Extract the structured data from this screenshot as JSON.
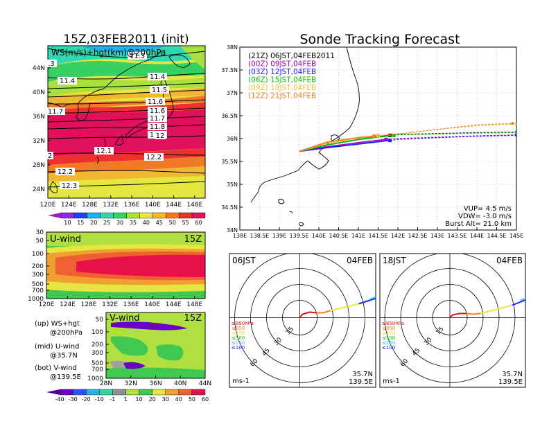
{
  "panels": {
    "main_title": "15Z,03FEB2011 (init)",
    "tracking_title": "Sonde Tracking Forecast",
    "map_label": "WS(m/s)+hgt(km)@200hPa",
    "u_wind_label": "U-wind",
    "u_wind_time": "15Z",
    "v_wind_label": "V-wind",
    "v_wind_time": "15Z",
    "legend_notes": [
      {
        "title": "(up) WS+hgt",
        "sub": "@200hPa"
      },
      {
        "title": "(mid) U-wind",
        "sub": "@35.7N"
      },
      {
        "title": "(bot) V-wind",
        "sub": "@139.5E"
      }
    ]
  },
  "map": {
    "lon_labels": [
      "120E",
      "124E",
      "128E",
      "132E",
      "136E",
      "140E",
      "144E",
      "148E"
    ],
    "lat_labels": [
      "24N",
      "28N",
      "32N",
      "36N",
      "40N",
      "44N"
    ],
    "contour_labels": [
      "11.3",
      "11.4",
      "11.4",
      "11.5",
      "11.6",
      "11.6",
      "11.7",
      "11.7",
      "11.8",
      "11.9",
      "12",
      "12.1",
      "12.2",
      "12.2",
      "12.3",
      ".3",
      "2"
    ],
    "ws_colorbar": [
      {
        "value": "10",
        "color": "#8a2be2"
      },
      {
        "value": "15",
        "color": "#2040ff"
      },
      {
        "value": "20",
        "color": "#22b0e8"
      },
      {
        "value": "25",
        "color": "#2fd8b0"
      },
      {
        "value": "30",
        "color": "#38d060"
      },
      {
        "value": "35",
        "color": "#a8e040"
      },
      {
        "value": "40",
        "color": "#e6e640"
      },
      {
        "value": "45",
        "color": "#f0b830"
      },
      {
        "value": "50",
        "color": "#f07a28"
      },
      {
        "value": "55",
        "color": "#ee3030"
      },
      {
        "value": "60",
        "color": "#e0105a"
      }
    ]
  },
  "cross_sections": {
    "pressure_labels": [
      "30",
      "50",
      "100",
      "200",
      "300",
      "500",
      "700",
      "1000"
    ],
    "u_lon_labels": [
      "120E",
      "124E",
      "128E",
      "132E",
      "136E",
      "140E",
      "144E",
      "148E"
    ],
    "v_lat_labels": [
      "28N",
      "32N",
      "36N",
      "40N",
      "44N"
    ],
    "v_pressure_labels": [
      "50",
      "100",
      "200",
      "300",
      "500",
      "700",
      "1000"
    ],
    "uv_colorbar": [
      "-40",
      "-30",
      "-20",
      "-10",
      "-1",
      "1",
      "10",
      "20",
      "30",
      "40",
      "50",
      "60"
    ],
    "uv_colors": [
      "#6a00c8",
      "#3050ff",
      "#28b0f0",
      "#30d8a8",
      "#909090",
      "#b0e040",
      "#40c850",
      "#e6e640",
      "#f0a030",
      "#f06030",
      "#e8104a"
    ]
  },
  "chart_data": {
    "type": "line",
    "title": "Sonde Tracking Forecast",
    "xlim": [
      138.0,
      145.0
    ],
    "ylim": [
      34.0,
      38.0
    ],
    "x_ticks": [
      "138E",
      "138.5E",
      "139E",
      "139.5E",
      "140E",
      "140.5E",
      "141E",
      "141.5E",
      "142E",
      "142.5E",
      "143E",
      "143.5E",
      "144E",
      "144.5E",
      "145E"
    ],
    "y_ticks": [
      "34N",
      "34.5N",
      "35N",
      "35.5N",
      "36N",
      "36.5N",
      "37N",
      "37.5N",
      "38N"
    ],
    "grid": true,
    "legend_placement": "top-left",
    "series": [
      {
        "name": "(21Z) 06JST,04FEB2011",
        "color": "#000000",
        "x": [
          139.5,
          140.2,
          141.0,
          141.8,
          142.0,
          143.0,
          144.0,
          145.0
        ],
        "y": [
          35.72,
          35.86,
          35.98,
          36.07,
          36.09,
          36.11,
          36.13,
          36.14
        ]
      },
      {
        "name": "(00Z) 09JST,04FEB",
        "color": "#b000c0",
        "x": [
          139.5,
          140.2,
          141.0,
          141.7,
          142.0,
          143.0,
          144.0,
          145.0
        ],
        "y": [
          35.72,
          35.82,
          35.91,
          35.98,
          36.0,
          36.03,
          36.06,
          36.08
        ]
      },
      {
        "name": "(03Z) 12JST,04FEB",
        "color": "#2020ff",
        "x": [
          139.5,
          140.2,
          141.0,
          141.8,
          142.0,
          143.0,
          144.0,
          145.0
        ],
        "y": [
          35.72,
          35.8,
          35.88,
          35.96,
          35.98,
          36.02,
          36.05,
          36.07
        ]
      },
      {
        "name": "(06Z) 15JST,04FEB",
        "color": "#10c010",
        "x": [
          139.5,
          140.2,
          141.0,
          141.9,
          142.0,
          143.0,
          144.0,
          145.0
        ],
        "y": [
          35.72,
          35.86,
          35.98,
          36.07,
          36.08,
          36.1,
          36.12,
          36.13
        ]
      },
      {
        "name": "(09Z) 18JST,04FEB",
        "color": "#f0c040",
        "x": [
          139.5,
          140.2,
          141.0,
          141.5,
          142.0,
          143.0,
          144.0,
          145.0
        ],
        "y": [
          35.72,
          35.9,
          36.02,
          36.06,
          36.1,
          36.2,
          36.28,
          36.32
        ]
      },
      {
        "name": "(12Z) 21JST,04FEB",
        "color": "#f08020",
        "x": [
          139.5,
          140.2,
          141.0,
          141.4,
          142.0,
          143.0,
          144.0,
          144.9
        ],
        "y": [
          35.72,
          35.92,
          36.02,
          36.05,
          36.1,
          36.2,
          36.3,
          36.33
        ]
      }
    ],
    "annotations": [
      "VUP= 4.5 m/s",
      "VDW= -3.0 m/s",
      "Burst Alt= 21.0 km"
    ]
  },
  "hodographs": [
    {
      "left_label": "06JST",
      "right_label": "04FEB",
      "bottom_right": [
        "35.7N",
        "139.5E"
      ],
      "bottom_left": "ms-1",
      "ring_labels": [
        "15",
        "30",
        "45",
        "60"
      ],
      "levels": [
        {
          "label": "≥850hPa",
          "color": "#e01010"
        },
        {
          "label": "≤850",
          "color": "#f08020"
        },
        {
          "label": "≤700",
          "color": "#e6e640"
        },
        {
          "label": "≤500",
          "color": "#10c010"
        },
        {
          "label": "≤250",
          "color": "#20d0e0"
        },
        {
          "label": "≤100",
          "color": "#2020ff"
        }
      ]
    },
    {
      "left_label": "18JST",
      "right_label": "04FEB",
      "bottom_right": [
        "35.7N",
        "139.5E"
      ],
      "bottom_left": "ms-1",
      "ring_labels": [
        "15",
        "30",
        "45",
        "60"
      ],
      "levels": [
        {
          "label": "≥850hPa",
          "color": "#e01010"
        },
        {
          "label": "≤850",
          "color": "#f08020"
        },
        {
          "label": "≤700",
          "color": "#e6e640"
        },
        {
          "label": "≤500",
          "color": "#10c010"
        },
        {
          "label": "≤250",
          "color": "#20d0e0"
        },
        {
          "label": "≤100",
          "color": "#2020ff"
        }
      ]
    }
  ]
}
